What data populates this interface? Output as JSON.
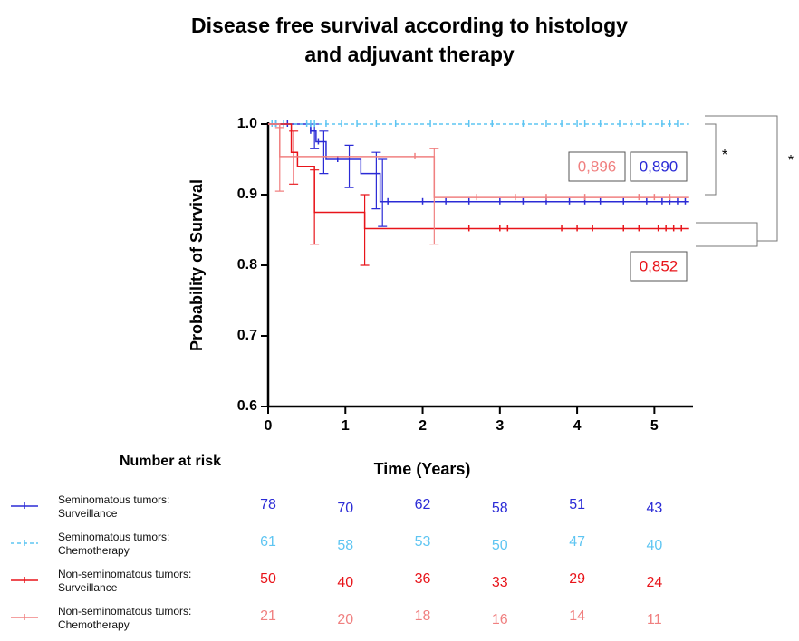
{
  "chart_data": {
    "type": "survival",
    "title": "Disease free survival according to histology",
    "subtitle": "and adjuvant therapy",
    "x_label": "Time (Years)",
    "y_label": "Probability of Survival",
    "risk_title": "Number at risk",
    "xlim": [
      0,
      5.5
    ],
    "ylim": [
      0.6,
      1.0
    ],
    "xticks": [
      0,
      1,
      2,
      3,
      4,
      5
    ],
    "yticks": [
      0.6,
      0.7,
      0.8,
      0.9,
      {
        "value": 1.0,
        "label": "1.0"
      }
    ],
    "series": [
      {
        "name": "Seminomatous tumors: Surveillance",
        "color": "#2b2bd6",
        "x": [
          0,
          0.55,
          0.62,
          0.75,
          1.2,
          1.45,
          5.45
        ],
        "values": [
          1.0,
          0.99,
          0.975,
          0.95,
          0.93,
          0.89,
          0.89
        ],
        "censored": [
          0.1,
          0.25,
          0.55,
          0.65,
          0.9,
          1.55,
          2.0,
          2.3,
          2.6,
          3.0,
          3.3,
          3.6,
          3.9,
          4.1,
          4.3,
          4.6,
          4.9,
          5.1,
          5.2,
          5.3,
          5.4
        ],
        "ci": [
          {
            "x": 0.6,
            "lo": 0.965,
            "hi": 1.0
          },
          {
            "x": 0.72,
            "lo": 0.93,
            "hi": 0.99
          },
          {
            "x": 1.05,
            "lo": 0.91,
            "hi": 0.97
          },
          {
            "x": 1.4,
            "lo": 0.88,
            "hi": 0.96
          },
          {
            "x": 1.48,
            "lo": 0.855,
            "hi": 0.95
          }
        ],
        "at_risk": [
          78,
          70,
          62,
          58,
          51,
          43
        ],
        "final": {
          "value": 0.89,
          "label": "0,890"
        }
      },
      {
        "name": "Seminomatous tumors: Chemotherapy",
        "color": "#5ec5f2",
        "dashed": true,
        "x": [
          0,
          5.45
        ],
        "values": [
          1.0,
          1.0
        ],
        "censored": [
          0.05,
          0.1,
          0.2,
          0.5,
          0.55,
          0.6,
          0.75,
          0.95,
          1.15,
          1.4,
          1.65,
          2.1,
          2.6,
          2.9,
          3.3,
          3.6,
          3.8,
          4.0,
          4.1,
          4.3,
          4.55,
          4.7,
          4.85,
          5.1,
          5.2,
          5.3
        ],
        "ci": [],
        "at_risk": [
          61,
          58,
          53,
          50,
          47,
          40
        ]
      },
      {
        "name": "Non-seminomatous tumors: Surveillance",
        "color": "#e8141a",
        "x": [
          0,
          0.3,
          0.38,
          0.6,
          1.25,
          5.45
        ],
        "values": [
          1.0,
          0.96,
          0.94,
          0.875,
          0.852,
          0.852
        ],
        "censored": [
          2.6,
          3.0,
          3.1,
          3.8,
          4.0,
          4.2,
          4.6,
          4.8,
          5.05,
          5.15,
          5.25,
          5.35
        ],
        "ci": [
          {
            "x": 0.33,
            "lo": 0.915,
            "hi": 0.99
          },
          {
            "x": 0.6,
            "lo": 0.83,
            "hi": 0.935
          },
          {
            "x": 1.25,
            "lo": 0.8,
            "hi": 0.9
          }
        ],
        "at_risk": [
          50,
          40,
          36,
          33,
          29,
          24
        ],
        "final": {
          "value": 0.852,
          "label": "0,852"
        }
      },
      {
        "name": "Non-seminomatous tumors: Chemotherapy",
        "color": "#f08080",
        "x": [
          0,
          0.15,
          2.15,
          5.45
        ],
        "values": [
          1.0,
          0.954,
          0.896,
          0.896
        ],
        "censored": [
          1.9,
          2.7,
          3.2,
          3.6,
          4.1,
          4.8,
          5.0,
          5.2
        ],
        "ci": [
          {
            "x": 0.15,
            "lo": 0.905,
            "hi": 0.995
          },
          {
            "x": 2.15,
            "lo": 0.83,
            "hi": 0.965
          }
        ],
        "at_risk": [
          21,
          20,
          18,
          16,
          14,
          11
        ],
        "final": {
          "value": 0.896,
          "label": "0,896"
        }
      }
    ],
    "significance": [
      "*",
      "*"
    ]
  }
}
